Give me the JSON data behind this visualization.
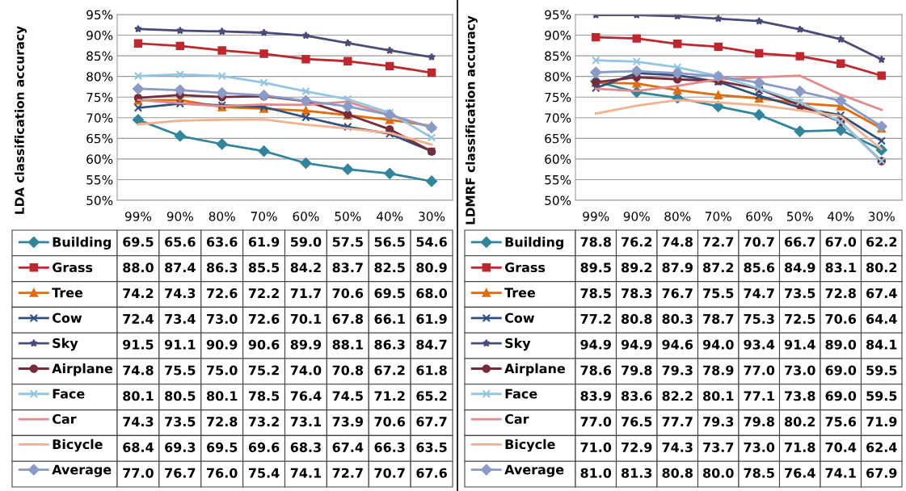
{
  "chart_data": [
    {
      "type": "line",
      "ylabel": "LDA classification accuracy",
      "legend": "bottom",
      "categories": [
        "99%",
        "90%",
        "80%",
        "70%",
        "60%",
        "50%",
        "40%",
        "30%"
      ],
      "ylim": [
        50,
        95
      ],
      "yticks": [
        {
          "value": 50,
          "label": "50%"
        },
        {
          "value": 55,
          "label": "55%"
        },
        {
          "value": 60,
          "label": "60%"
        },
        {
          "value": 65,
          "label": "65%"
        },
        {
          "value": 70,
          "label": "70%"
        },
        {
          "value": 75,
          "label": "75%"
        },
        {
          "value": 80,
          "label": "80%"
        },
        {
          "value": 85,
          "label": "85%"
        },
        {
          "value": 90,
          "label": "90%"
        },
        {
          "value": 95,
          "label": "95%"
        }
      ],
      "grid": "y",
      "series": [
        {
          "name": "Building",
          "color": "#31859c",
          "marker": "diamond",
          "values": [
            69.5,
            65.6,
            63.6,
            61.9,
            59.0,
            57.5,
            56.5,
            54.6
          ],
          "value_labels": [
            "69.5",
            "65.6",
            "63.6",
            "61.9",
            "59.0",
            "57.5",
            "56.5",
            "54.6"
          ]
        },
        {
          "name": "Grass",
          "color": "#c0262d",
          "marker": "square",
          "values": [
            88.0,
            87.4,
            86.3,
            85.5,
            84.2,
            83.7,
            82.5,
            80.9
          ],
          "value_labels": [
            "88.0",
            "87.4",
            "86.3",
            "85.5",
            "84.2",
            "83.7",
            "82.5",
            "80.9"
          ]
        },
        {
          "name": "Tree",
          "color": "#e36c0a",
          "marker": "triangle",
          "values": [
            74.2,
            74.3,
            72.6,
            72.2,
            71.7,
            70.6,
            69.5,
            68.0
          ],
          "value_labels": [
            "74.2",
            "74.3",
            "72.6",
            "72.2",
            "71.7",
            "70.6",
            "69.5",
            "68.0"
          ]
        },
        {
          "name": "Cow",
          "color": "#2f4f7f",
          "marker": "cross",
          "values": [
            72.4,
            73.4,
            73.0,
            72.6,
            70.1,
            67.8,
            66.1,
            61.9
          ],
          "value_labels": [
            "72.4",
            "73.4",
            "73.0",
            "72.6",
            "70.1",
            "67.8",
            "66.1",
            "61.9"
          ]
        },
        {
          "name": "Sky",
          "color": "#4b4b78",
          "marker": "star",
          "values": [
            91.5,
            91.1,
            90.9,
            90.6,
            89.9,
            88.1,
            86.3,
            84.7
          ],
          "value_labels": [
            "91.5",
            "91.1",
            "90.9",
            "90.6",
            "89.9",
            "88.1",
            "86.3",
            "84.7"
          ]
        },
        {
          "name": "Airplane",
          "color": "#772c3c",
          "marker": "circle",
          "values": [
            74.8,
            75.5,
            75.0,
            75.2,
            74.0,
            70.8,
            67.2,
            61.8
          ],
          "value_labels": [
            "74.8",
            "75.5",
            "75.0",
            "75.2",
            "74.0",
            "70.8",
            "67.2",
            "61.8"
          ]
        },
        {
          "name": "Face",
          "color": "#93c6e0",
          "marker": "cross",
          "values": [
            80.1,
            80.5,
            80.1,
            78.5,
            76.4,
            74.5,
            71.2,
            65.2
          ],
          "value_labels": [
            "80.1",
            "80.5",
            "80.1",
            "78.5",
            "76.4",
            "74.5",
            "71.2",
            "65.2"
          ]
        },
        {
          "name": "Car",
          "color": "#e6898b",
          "marker": "none",
          "values": [
            74.3,
            73.5,
            72.8,
            73.2,
            73.1,
            73.9,
            70.6,
            67.7
          ],
          "value_labels": [
            "74.3",
            "73.5",
            "72.8",
            "73.2",
            "73.1",
            "73.9",
            "70.6",
            "67.7"
          ]
        },
        {
          "name": "Bicycle",
          "color": "#f4b18e",
          "marker": "none",
          "values": [
            68.4,
            69.3,
            69.5,
            69.6,
            68.3,
            67.4,
            66.3,
            63.5
          ],
          "value_labels": [
            "68.4",
            "69.3",
            "69.5",
            "69.6",
            "68.3",
            "67.4",
            "66.3",
            "63.5"
          ]
        },
        {
          "name": "Average",
          "color": "#8a9bc8",
          "marker": "diamond",
          "values": [
            77.0,
            76.7,
            76.0,
            75.4,
            74.1,
            72.7,
            70.7,
            67.6
          ],
          "value_labels": [
            "77.0",
            "76.7",
            "76.0",
            "75.4",
            "74.1",
            "72.7",
            "70.7",
            "67.6"
          ]
        }
      ]
    },
    {
      "type": "line",
      "ylabel": "LDMRF classification accuracy",
      "legend": "bottom",
      "categories": [
        "99%",
        "90%",
        "80%",
        "70%",
        "60%",
        "50%",
        "40%",
        "30%"
      ],
      "ylim": [
        50,
        95
      ],
      "yticks": [
        {
          "value": 50,
          "label": "50%"
        },
        {
          "value": 55,
          "label": "55%"
        },
        {
          "value": 60,
          "label": "60%"
        },
        {
          "value": 65,
          "label": "65%"
        },
        {
          "value": 70,
          "label": "70%"
        },
        {
          "value": 75,
          "label": "75%"
        },
        {
          "value": 80,
          "label": "80%"
        },
        {
          "value": 85,
          "label": "85%"
        },
        {
          "value": 90,
          "label": "90%"
        },
        {
          "value": 95,
          "label": "95%"
        }
      ],
      "grid": "y",
      "series": [
        {
          "name": "Building",
          "color": "#31859c",
          "marker": "diamond",
          "values": [
            78.8,
            76.2,
            74.8,
            72.7,
            70.7,
            66.7,
            67.0,
            62.2
          ],
          "value_labels": [
            "78.8",
            "76.2",
            "74.8",
            "72.7",
            "70.7",
            "66.7",
            "67.0",
            "62.2"
          ]
        },
        {
          "name": "Grass",
          "color": "#c0262d",
          "marker": "square",
          "values": [
            89.5,
            89.2,
            87.9,
            87.2,
            85.6,
            84.9,
            83.1,
            80.2
          ],
          "value_labels": [
            "89.5",
            "89.2",
            "87.9",
            "87.2",
            "85.6",
            "84.9",
            "83.1",
            "80.2"
          ]
        },
        {
          "name": "Tree",
          "color": "#e36c0a",
          "marker": "triangle",
          "values": [
            78.5,
            78.3,
            76.7,
            75.5,
            74.7,
            73.5,
            72.8,
            67.4
          ],
          "value_labels": [
            "78.5",
            "78.3",
            "76.7",
            "75.5",
            "74.7",
            "73.5",
            "72.8",
            "67.4"
          ]
        },
        {
          "name": "Cow",
          "color": "#2f4f7f",
          "marker": "cross",
          "values": [
            77.2,
            80.8,
            80.3,
            78.7,
            75.3,
            72.5,
            70.6,
            64.4
          ],
          "value_labels": [
            "77.2",
            "80.8",
            "80.3",
            "78.7",
            "75.3",
            "72.5",
            "70.6",
            "64.4"
          ]
        },
        {
          "name": "Sky",
          "color": "#4b4b78",
          "marker": "star",
          "values": [
            94.9,
            94.9,
            94.6,
            94.0,
            93.4,
            91.4,
            89.0,
            84.1
          ],
          "value_labels": [
            "94.9",
            "94.9",
            "94.6",
            "94.0",
            "93.4",
            "91.4",
            "89.0",
            "84.1"
          ]
        },
        {
          "name": "Airplane",
          "color": "#772c3c",
          "marker": "circle",
          "values": [
            78.6,
            79.8,
            79.3,
            78.9,
            77.0,
            73.0,
            69.0,
            59.5
          ],
          "value_labels": [
            "78.6",
            "79.8",
            "79.3",
            "78.9",
            "77.0",
            "73.0",
            "69.0",
            "59.5"
          ]
        },
        {
          "name": "Face",
          "color": "#93c6e0",
          "marker": "cross",
          "values": [
            83.9,
            83.6,
            82.2,
            80.1,
            77.1,
            73.8,
            69.0,
            59.5
          ],
          "value_labels": [
            "83.9",
            "83.6",
            "82.2",
            "80.1",
            "77.1",
            "73.8",
            "69.0",
            "59.5"
          ]
        },
        {
          "name": "Car",
          "color": "#e6898b",
          "marker": "none",
          "values": [
            77.0,
            76.5,
            77.7,
            79.3,
            79.8,
            80.2,
            75.6,
            71.9
          ],
          "value_labels": [
            "77.0",
            "76.5",
            "77.7",
            "79.3",
            "79.8",
            "80.2",
            "75.6",
            "71.9"
          ]
        },
        {
          "name": "Bicycle",
          "color": "#f4b18e",
          "marker": "none",
          "values": [
            71.0,
            72.9,
            74.3,
            73.7,
            73.0,
            71.8,
            70.4,
            62.4
          ],
          "value_labels": [
            "71.0",
            "72.9",
            "74.3",
            "73.7",
            "73.0",
            "71.8",
            "70.4",
            "62.4"
          ]
        },
        {
          "name": "Average",
          "color": "#8a9bc8",
          "marker": "diamond",
          "values": [
            81.0,
            81.3,
            80.8,
            80.0,
            78.5,
            76.4,
            74.1,
            67.9
          ],
          "value_labels": [
            "81.0",
            "81.3",
            "80.8",
            "80.0",
            "78.5",
            "76.4",
            "74.1",
            "67.9"
          ]
        }
      ]
    }
  ]
}
